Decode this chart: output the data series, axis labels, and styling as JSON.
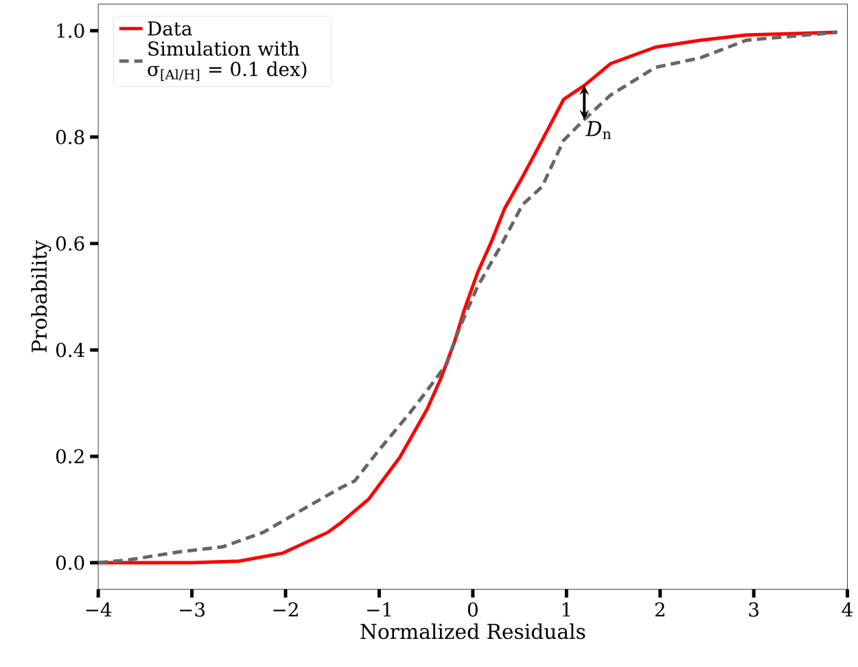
{
  "chart_data": {
    "type": "line",
    "xlabel": "Normalized Residuals",
    "ylabel": "Probability",
    "xlim": [
      -4,
      4
    ],
    "ylim": [
      -0.05,
      1.05
    ],
    "xticks": [
      {
        "value": -4,
        "label": "−4"
      },
      {
        "value": -3,
        "label": "−3"
      },
      {
        "value": -2,
        "label": "−2"
      },
      {
        "value": -1,
        "label": "−1"
      },
      0,
      1,
      2,
      3,
      4
    ],
    "yticks": [
      {
        "value": 0,
        "label": "0.0"
      },
      0.2,
      0.4,
      0.6,
      0.8,
      {
        "value": 1,
        "label": "1.0"
      }
    ],
    "legend": "top left",
    "grid": false,
    "marker": "none",
    "series": [
      {
        "name": "Data",
        "color": "#ff0000",
        "line_style": "solid",
        "x": [
          -4,
          -3,
          -2.5,
          -2.03,
          -1.55,
          -1.41,
          -1.11,
          -0.78,
          -0.49,
          -0.34,
          -0.195,
          -0.09,
          0.05,
          0.2,
          0.34,
          0.53,
          0.74,
          0.97,
          1.19,
          1.47,
          1.95,
          2.43,
          2.92,
          3.89
        ],
        "values": [
          0.0,
          0.0,
          0.003,
          0.018,
          0.057,
          0.075,
          0.12,
          0.198,
          0.288,
          0.347,
          0.416,
          0.476,
          0.545,
          0.604,
          0.666,
          0.725,
          0.794,
          0.871,
          0.897,
          0.938,
          0.969,
          0.982,
          0.992,
          0.997
        ]
      },
      {
        "name": "Simulation with σ$_{[Al/H]}$ = 0.1 dex)",
        "color": "#666666",
        "line_style": "dashed",
        "x": [
          -4,
          -3.69,
          -3.15,
          -2.67,
          -2.24,
          -1.74,
          -1.41,
          -1.26,
          -1.01,
          -0.68,
          -0.53,
          -0.28,
          -0.14,
          0.05,
          0.3,
          0.53,
          0.74,
          0.97,
          1.19,
          1.47,
          1.95,
          2.43,
          2.92,
          3.89
        ],
        "values": [
          0.0,
          0.005,
          0.02,
          0.03,
          0.057,
          0.108,
          0.141,
          0.154,
          0.21,
          0.28,
          0.314,
          0.373,
          0.442,
          0.519,
          0.596,
          0.673,
          0.707,
          0.794,
          0.833,
          0.879,
          0.931,
          0.949,
          0.982,
          0.997
        ]
      }
    ],
    "annotations": [
      {
        "text": "*D*$_{n}$",
        "x": 1.19,
        "y": 0.833
      }
    ]
  }
}
